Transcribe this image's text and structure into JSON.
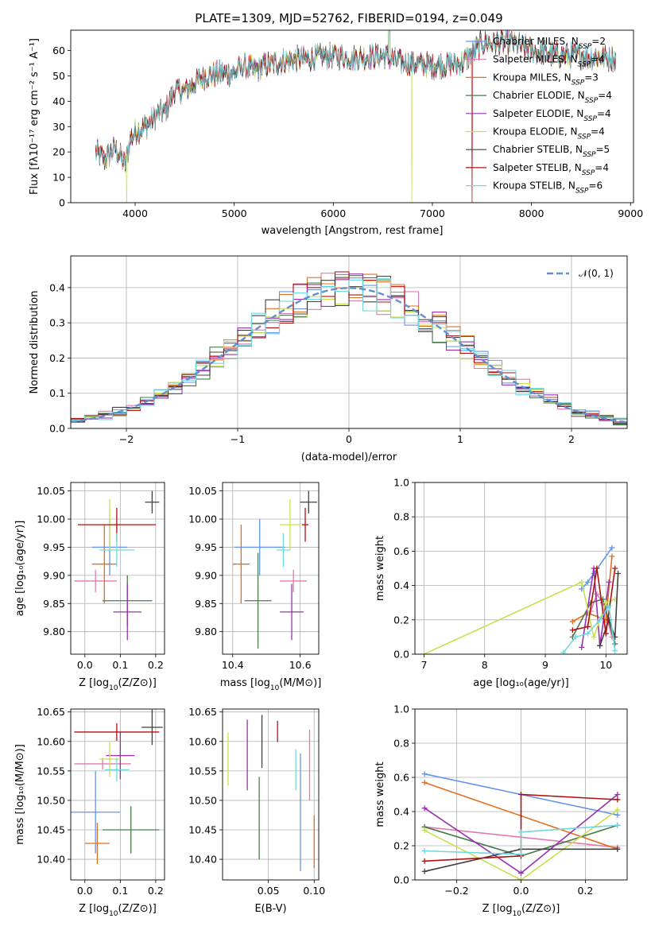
{
  "figure": {
    "title": "PLATE=1309, MJD=52762, FIBERID=0194, z=0.049"
  },
  "series_colors": [
    "#6495ed",
    "#e07ab0",
    "#e07020",
    "#4a7a4a",
    "#9a30b0",
    "#c8e050",
    "#404040",
    "#b01010",
    "#70d8e0"
  ],
  "chart_data": [
    {
      "id": "spectrum",
      "type": "line",
      "title": "PLATE=1309, MJD=52762, FIBERID=0194, z=0.049",
      "xlabel": "wavelength [Angstrom, rest frame]",
      "ylabel": "Flux [fλ10⁻¹⁷ erg cm⁻² s⁻¹ A⁻¹]",
      "xlim": [
        3350,
        9030
      ],
      "ylim": [
        0,
        68
      ],
      "xticks": [
        4000,
        5000,
        6000,
        7000,
        8000,
        9000
      ],
      "yticks": [
        0,
        10,
        20,
        30,
        40,
        50,
        60
      ],
      "grid": false,
      "legend_position": "top-right",
      "x_range_data": [
        3600,
        8850
      ],
      "continuum_x": [
        3600,
        3700,
        3800,
        3900,
        3950,
        4000,
        4100,
        4200,
        4300,
        4400,
        4500,
        4700,
        4900,
        5000,
        5100,
        5200,
        5300,
        5500,
        5800,
        6000,
        6200,
        6500,
        6700,
        7000,
        7300,
        7500,
        7800,
        8000,
        8300,
        8500,
        8850
      ],
      "continuum_y": [
        20,
        17,
        22,
        15,
        25,
        28,
        30,
        34,
        36,
        44,
        44,
        50,
        51,
        51,
        54,
        52,
        54,
        56,
        57,
        58,
        57,
        58,
        55,
        54,
        55,
        63,
        63,
        60,
        58,
        58,
        57
      ],
      "series": [
        {
          "name": "Chabrier MILES, N$_{SSP}$=2",
          "label_main": "Chabrier MILES, N",
          "label_sub": "SSP",
          "label_tail": "=2"
        },
        {
          "name": "Salpeter MILES, N$_{SSP}$=4",
          "label_main": "Salpeter MILES, N",
          "label_sub": "SSP",
          "label_tail": "=4"
        },
        {
          "name": "Kroupa MILES, N$_{SSP}$=3",
          "label_main": "Kroupa MILES, N",
          "label_sub": "SSP",
          "label_tail": "=3"
        },
        {
          "name": "Chabrier ELODIE, N$_{SSP}$=4",
          "label_main": "Chabrier ELODIE, N",
          "label_sub": "SSP",
          "label_tail": "=4"
        },
        {
          "name": "Salpeter ELODIE, N$_{SSP}$=4",
          "label_main": "Salpeter ELODIE, N",
          "label_sub": "SSP",
          "label_tail": "=4"
        },
        {
          "name": "Kroupa ELODIE, N$_{SSP}$=4",
          "label_main": "Kroupa ELODIE, N",
          "label_sub": "SSP",
          "label_tail": "=4"
        },
        {
          "name": "Chabrier STELIB, N$_{SSP}$=5",
          "label_main": "Chabrier STELIB, N",
          "label_sub": "SSP",
          "label_tail": "=5"
        },
        {
          "name": "Salpeter STELIB, N$_{SSP}$=4",
          "label_main": "Salpeter STELIB, N",
          "label_sub": "SSP",
          "label_tail": "=4"
        },
        {
          "name": "Kroupa STELIB, N$_{SSP}$=6",
          "label_main": "Kroupa STELIB, N",
          "label_sub": "SSP",
          "label_tail": "=6"
        }
      ]
    },
    {
      "id": "residuals",
      "type": "histogram",
      "xlabel": "(data-model)/error",
      "ylabel": "Normed distribution",
      "xlim": [
        -2.5,
        2.5
      ],
      "ylim": [
        0,
        0.49
      ],
      "xticks": [
        -2,
        -1,
        0,
        1,
        2
      ],
      "yticks": [
        0.0,
        0.1,
        0.2,
        0.3,
        0.4
      ],
      "grid": true,
      "bin_width": 0.125,
      "gaussian_label": "𝒩(0, 1)",
      "legend_position": "top-right"
    },
    {
      "id": "age_vs_Z",
      "type": "errorbar",
      "xlabel_main": "Z [log",
      "xlabel_sub": "10",
      "xlabel_tail": "(Z/Z⊙)]",
      "ylabel": "age  [log₁₀(age/yr)]",
      "xlim": [
        -0.04,
        0.225
      ],
      "ylim": [
        9.76,
        10.065
      ],
      "xticks": [
        0.0,
        0.1,
        0.2
      ],
      "yticks": [
        9.8,
        9.85,
        9.9,
        9.95,
        10.0,
        10.05
      ],
      "grid": true,
      "points": [
        {
          "x": 0.07,
          "xerr": 0.05,
          "y": 9.95,
          "yerr": 0.05
        },
        {
          "x": 0.03,
          "xerr": 0.06,
          "y": 9.89,
          "yerr": 0.02
        },
        {
          "x": 0.055,
          "xerr": 0.035,
          "y": 9.92,
          "yerr": 0.07
        },
        {
          "x": 0.12,
          "xerr": 0.07,
          "y": 9.855,
          "yerr": 0.045
        },
        {
          "x": 0.12,
          "xerr": 0.04,
          "y": 9.835,
          "yerr": 0.05
        },
        {
          "x": 0.07,
          "xerr": 0.03,
          "y": 9.99,
          "yerr": 0.045
        },
        {
          "x": 0.19,
          "xerr": 0.02,
          "y": 10.03,
          "yerr": 0.02
        },
        {
          "x": 0.09,
          "xerr": 0.11,
          "y": 9.99,
          "yerr": 0.03
        },
        {
          "x": 0.09,
          "xerr": 0.05,
          "y": 9.945,
          "yerr": 0.03
        }
      ]
    },
    {
      "id": "age_vs_mass",
      "type": "errorbar",
      "xlabel_main": "mass [log",
      "xlabel_sub": "10",
      "xlabel_tail": "(M/M⊙)]",
      "ylabel": "",
      "xlim": [
        10.37,
        10.655
      ],
      "ylim": [
        9.76,
        10.065
      ],
      "xticks": [
        10.4,
        10.6
      ],
      "yticks": [
        9.8,
        9.85,
        9.9,
        9.95,
        10.0,
        10.05
      ],
      "grid": true,
      "points": [
        {
          "x": 10.48,
          "xerr": 0.075,
          "y": 9.95,
          "yerr": 0.05
        },
        {
          "x": 10.58,
          "xerr": 0.04,
          "y": 9.89,
          "yerr": 0.02
        },
        {
          "x": 10.425,
          "xerr": 0.025,
          "y": 9.92,
          "yerr": 0.07
        },
        {
          "x": 10.475,
          "xerr": 0.04,
          "y": 9.855,
          "yerr": 0.085
        },
        {
          "x": 10.575,
          "xerr": 0.035,
          "y": 9.835,
          "yerr": 0.05
        },
        {
          "x": 10.57,
          "xerr": 0.03,
          "y": 9.99,
          "yerr": 0.045
        },
        {
          "x": 10.625,
          "xerr": 0.025,
          "y": 10.03,
          "yerr": 0.02
        },
        {
          "x": 10.615,
          "xerr": 0.01,
          "y": 9.99,
          "yerr": 0.03
        },
        {
          "x": 10.55,
          "xerr": 0.02,
          "y": 9.945,
          "yerr": 0.03
        }
      ]
    },
    {
      "id": "weight_vs_age",
      "type": "line",
      "xlabel": "age  [log₁₀(age/yr)]",
      "ylabel": "mass weight",
      "xlim": [
        6.85,
        10.35
      ],
      "ylim": [
        0,
        1
      ],
      "xticks": [
        7,
        8,
        9,
        10
      ],
      "yticks": [
        0.0,
        0.2,
        0.4,
        0.6,
        0.8,
        1.0
      ],
      "grid": true,
      "series": [
        {
          "x": [
            9.6,
            9.7,
            9.8,
            10.1
          ],
          "y": [
            0.38,
            0.42,
            0.47,
            0.62
          ]
        },
        {
          "x": [
            9.75,
            9.85,
            9.95,
            10.1
          ],
          "y": [
            0.25,
            0.35,
            0.3,
            0.1
          ]
        },
        {
          "x": [
            9.45,
            9.7,
            10.0,
            10.1
          ],
          "y": [
            0.19,
            0.24,
            0.2,
            0.57
          ]
        },
        {
          "x": [
            9.45,
            9.75,
            9.95,
            10.15
          ],
          "y": [
            0.1,
            0.3,
            0.32,
            0.06
          ]
        },
        {
          "x": [
            9.6,
            9.8,
            9.9,
            10.05
          ],
          "y": [
            0.04,
            0.5,
            0.05,
            0.42
          ]
        },
        {
          "x": [
            7.0,
            9.6,
            9.8,
            10.0,
            10.15
          ],
          "y": [
            0.0,
            0.42,
            0.1,
            0.3,
            0.32
          ]
        },
        {
          "x": [
            9.9,
            10.05,
            10.15,
            10.2
          ],
          "y": [
            0.05,
            0.2,
            0.1,
            0.47
          ]
        },
        {
          "x": [
            9.45,
            9.7,
            9.85,
            10.0,
            10.15
          ],
          "y": [
            0.14,
            0.16,
            0.5,
            0.12,
            0.5
          ]
        },
        {
          "x": [
            9.3,
            9.5,
            9.7,
            9.9,
            10.05,
            10.15
          ],
          "y": [
            0.01,
            0.1,
            0.12,
            0.2,
            0.28,
            0.02
          ]
        }
      ]
    },
    {
      "id": "mass_vs_Z",
      "type": "errorbar",
      "xlabel_main": "Z [log",
      "xlabel_sub": "10",
      "xlabel_tail": "(Z/Z⊙)]",
      "ylabel": "mass [log₁₀(M/M⊙)]",
      "xlim": [
        -0.04,
        0.225
      ],
      "ylim": [
        10.365,
        10.655
      ],
      "xticks": [
        0.0,
        0.1,
        0.2
      ],
      "yticks": [
        10.4,
        10.45,
        10.5,
        10.55,
        10.6,
        10.65
      ],
      "grid": true,
      "points": [
        {
          "x": 0.03,
          "xerr": 0.07,
          "y": 10.48,
          "yerr": 0.07
        },
        {
          "x": 0.05,
          "xerr": 0.08,
          "y": 10.562,
          "yerr": 0.01
        },
        {
          "x": 0.035,
          "xerr": 0.035,
          "y": 10.427,
          "yerr": 0.035
        },
        {
          "x": 0.13,
          "xerr": 0.08,
          "y": 10.45,
          "yerr": 0.04
        },
        {
          "x": 0.1,
          "xerr": 0.04,
          "y": 10.576,
          "yerr": 0.04
        },
        {
          "x": 0.07,
          "xerr": 0.03,
          "y": 10.57,
          "yerr": 0.03
        },
        {
          "x": 0.19,
          "xerr": 0.03,
          "y": 10.624,
          "yerr": 0.03
        },
        {
          "x": 0.09,
          "xerr": 0.12,
          "y": 10.616,
          "yerr": 0.015
        },
        {
          "x": 0.09,
          "xerr": 0.035,
          "y": 10.552,
          "yerr": 0.02
        }
      ]
    },
    {
      "id": "mass_vs_ebv",
      "type": "errorbar",
      "xlabel": "E(B-V)",
      "ylabel": "",
      "xlim": [
        0.0,
        0.105
      ],
      "ylim": [
        10.365,
        10.655
      ],
      "xticks": [
        0.05,
        0.1
      ],
      "yticks": [
        10.4,
        10.45,
        10.5,
        10.55,
        10.6,
        10.65
      ],
      "grid": true,
      "points": [
        {
          "x": 0.085,
          "xerr": 0.0,
          "y": 10.48,
          "yerr": 0.1
        },
        {
          "x": 0.095,
          "xerr": 0.0,
          "y": 10.56,
          "yerr": 0.06
        },
        {
          "x": 0.1,
          "xerr": 0.0,
          "y": 10.43,
          "yerr": 0.045
        },
        {
          "x": 0.04,
          "xerr": 0.0,
          "y": 10.47,
          "yerr": 0.07
        },
        {
          "x": 0.027,
          "xerr": 0.0,
          "y": 10.577,
          "yerr": 0.06
        },
        {
          "x": 0.006,
          "xerr": 0.0,
          "y": 10.57,
          "yerr": 0.045
        },
        {
          "x": 0.043,
          "xerr": 0.0,
          "y": 10.6,
          "yerr": 0.045
        },
        {
          "x": 0.06,
          "xerr": 0.0,
          "y": 10.617,
          "yerr": 0.018
        },
        {
          "x": 0.08,
          "xerr": 0.0,
          "y": 10.552,
          "yerr": 0.035
        }
      ]
    },
    {
      "id": "weight_vs_Z",
      "type": "line",
      "xlabel_main": "Z [log",
      "xlabel_sub": "10",
      "xlabel_tail": "(Z/Z⊙)]",
      "ylabel": "mass weight",
      "xlim": [
        -0.33,
        0.33
      ],
      "ylim": [
        0,
        1
      ],
      "xticks": [
        -0.2,
        0.0,
        0.2
      ],
      "yticks": [
        0.0,
        0.2,
        0.4,
        0.6,
        0.8,
        1.0
      ],
      "grid": true,
      "series": [
        {
          "x": [
            -0.3,
            0.3
          ],
          "y": [
            0.62,
            0.38
          ]
        },
        {
          "x": [
            -0.3,
            0.3
          ],
          "y": [
            0.31,
            0.19
          ]
        },
        {
          "x": [
            -0.3,
            0.3
          ],
          "y": [
            0.57,
            0.18
          ]
        },
        {
          "x": [
            -0.3,
            0.0,
            0.3
          ],
          "y": [
            0.31,
            0.14,
            0.32
          ]
        },
        {
          "x": [
            -0.3,
            0.0,
            0.3
          ],
          "y": [
            0.42,
            0.04,
            0.5
          ]
        },
        {
          "x": [
            -0.3,
            0.0,
            0.3
          ],
          "y": [
            0.29,
            0.0,
            0.41
          ]
        },
        {
          "x": [
            -0.3,
            0.0,
            0.3
          ],
          "y": [
            0.05,
            0.18,
            0.18
          ]
        },
        {
          "x": [
            -0.3,
            0.0,
            0.0,
            0.3
          ],
          "y": [
            0.11,
            0.14,
            0.5,
            0.47
          ]
        },
        {
          "x": [
            -0.3,
            0.0,
            0.0,
            0.3
          ],
          "y": [
            0.17,
            0.15,
            0.28,
            0.32
          ]
        }
      ]
    }
  ]
}
